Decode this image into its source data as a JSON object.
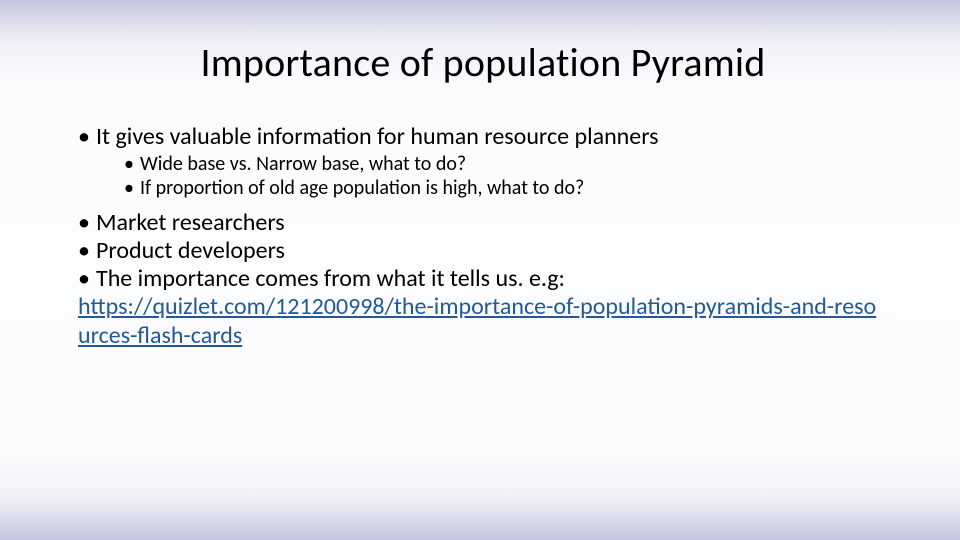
{
  "title": "Importance of population Pyramid",
  "content": {
    "items": [
      {
        "text": "It gives valuable information for human resource planners",
        "sub": [
          "Wide base vs. Narrow base, what to do?",
          "If proportion of old age population is high, what to do?"
        ]
      },
      {
        "text": "Market researchers"
      },
      {
        "text": "Product developers"
      },
      {
        "text": "The importance comes from what it tells us. e.g:"
      }
    ],
    "link_text": "https://quizlet.com/121200998/the-importance-of-population-pyramids-and-resources-flash-cards"
  },
  "colors": {
    "title_color": "#000000",
    "body_color": "#000000",
    "link_color": "#215a9a",
    "bg_top": "#c3c4df",
    "bg_mid": "#fdfdfe",
    "bg_bottom": "#c3c4df"
  },
  "typography": {
    "title_fontsize_pt": 30,
    "body_fontsize_pt": 18,
    "sub_fontsize_pt": 15,
    "font_family": "Calibri"
  }
}
